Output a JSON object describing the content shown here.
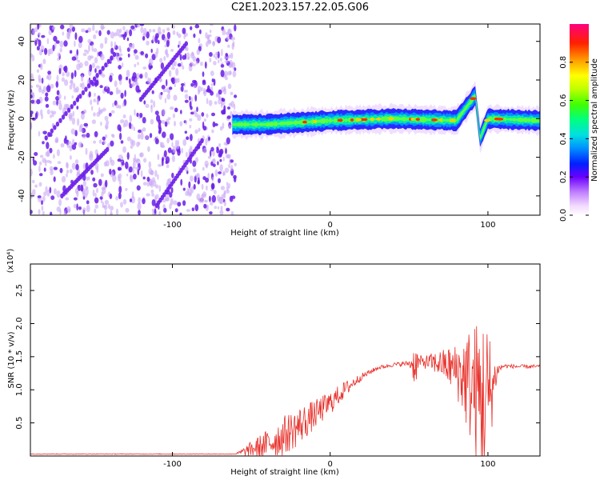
{
  "title": "C2E1.2023.157.22.05.G06",
  "charts": [
    {
      "type": "heatmap",
      "xlabel": "Height of straight line (km)",
      "ylabel": "Frequency (Hz)",
      "xlim": [
        -190,
        133
      ],
      "ylim": [
        -50,
        49
      ],
      "x_ticks": [
        -100,
        0,
        100
      ],
      "y_ticks": [
        -40,
        -20,
        0,
        20,
        40
      ],
      "description_of_field": {
        "noise_region_x": [
          -190,
          -60
        ],
        "signal_center_hz": [
          [
            -60,
            -3
          ],
          [
            -40,
            -3
          ],
          [
            -20,
            -2
          ],
          [
            0,
            -1
          ],
          [
            40,
            0
          ],
          [
            80,
            -1
          ],
          [
            92,
            12
          ],
          [
            95,
            -10
          ],
          [
            100,
            0
          ],
          [
            133,
            -1
          ]
        ]
      },
      "colorbar": {
        "label": "Normalized spectral amplitude",
        "range": [
          0.0,
          1.0
        ],
        "ticks": [
          0.0,
          0.2,
          0.4,
          0.6,
          0.8
        ],
        "tick_labels": [
          "0.0",
          "0.2",
          "0.4",
          "0.6",
          "0.8"
        ]
      }
    },
    {
      "type": "line",
      "xlabel": "Height of straight line (km)",
      "ylabel": "SNR (10 * v/v)",
      "scale_note": "(x10⁴)",
      "xlim": [
        -190,
        133
      ],
      "ylim": [
        0,
        2.9
      ],
      "x_ticks": [
        -100,
        0,
        100
      ],
      "y_ticks": [
        0.5,
        1.0,
        1.5,
        2.0,
        2.5
      ],
      "y_tick_labels": [
        "0.5",
        "1.0",
        "1.5",
        "2.0",
        "2.5"
      ],
      "series_color": "#e8302a",
      "envelope": {
        "x": [
          -190,
          -60,
          -50,
          -40,
          -30,
          -20,
          -10,
          0,
          10,
          20,
          30,
          40,
          50,
          54,
          56,
          60,
          70,
          80,
          85,
          90,
          95,
          98,
          100,
          103,
          106,
          110,
          120,
          133
        ],
        "base": [
          0.03,
          0.03,
          0.1,
          0.18,
          0.3,
          0.45,
          0.62,
          0.8,
          1.02,
          1.2,
          1.33,
          1.38,
          1.4,
          1.38,
          1.42,
          1.42,
          1.4,
          1.3,
          1.2,
          1.05,
          0.9,
          0.8,
          0.85,
          1.05,
          1.3,
          1.36,
          1.35,
          1.35
        ],
        "amp": [
          0.005,
          0.005,
          0.12,
          0.22,
          0.3,
          0.3,
          0.22,
          0.18,
          0.12,
          0.05,
          0.03,
          0.03,
          0.04,
          0.35,
          0.1,
          0.1,
          0.2,
          0.4,
          0.7,
          0.95,
          1.2,
          1.4,
          1.2,
          0.5,
          0.1,
          0.03,
          0.03,
          0.03
        ]
      }
    }
  ],
  "colors": {
    "noise_light": "#c9a8f5",
    "noise_dark": "#6a1de8",
    "line": "#e8302a"
  }
}
